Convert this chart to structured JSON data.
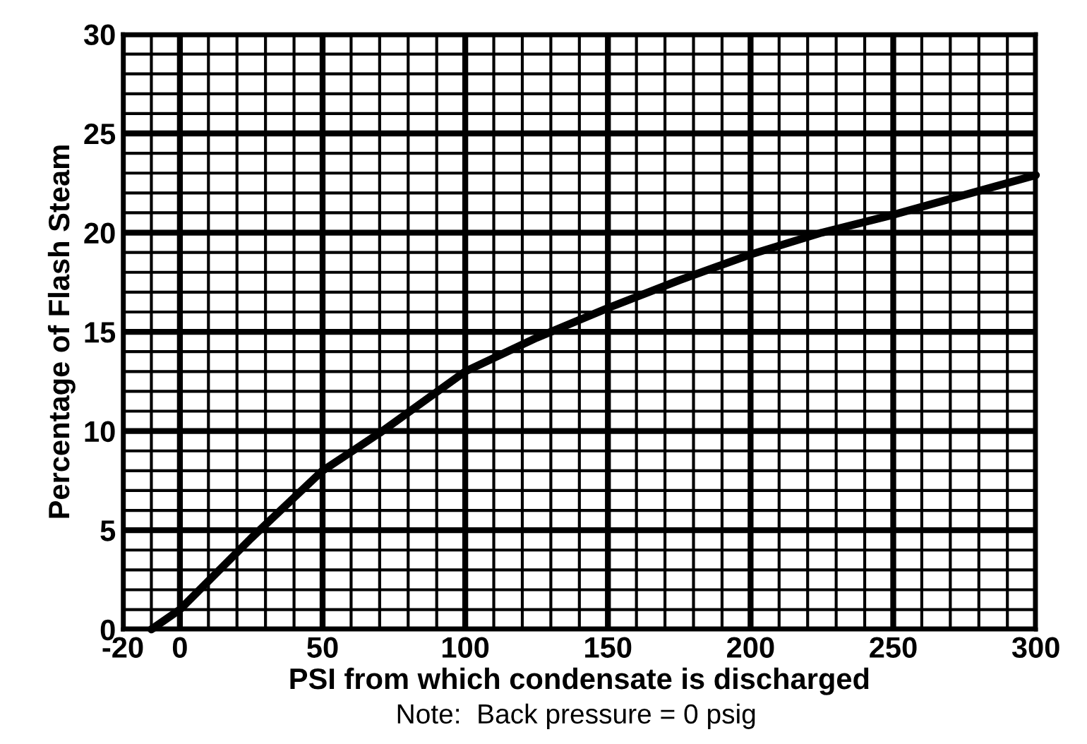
{
  "chart_data": {
    "type": "line",
    "xlabel": "PSI from which condensate is discharged",
    "ylabel": "Percentage of Flash Steam",
    "annotations": [
      "Note:  Back pressure = 0 psig"
    ],
    "x": [
      -10,
      0,
      25,
      50,
      70,
      100,
      125,
      150,
      175,
      200,
      225,
      250,
      275,
      300
    ],
    "series": [
      {
        "color": "#000000",
        "values": [
          0,
          1,
          4.6,
          8,
          9.9,
          13,
          14.7,
          16.2,
          17.6,
          18.9,
          20,
          20.9,
          21.9,
          22.9
        ]
      }
    ],
    "xlim": [
      -20,
      300
    ],
    "ylim": [
      0,
      30
    ],
    "xticks": [
      -20,
      {
        "value": -10,
        "label": null
      },
      0,
      {
        "value": 10,
        "label": null
      },
      {
        "value": 20,
        "label": null
      },
      {
        "value": 30,
        "label": null
      },
      {
        "value": 40,
        "label": null
      },
      50,
      {
        "value": 60,
        "label": null
      },
      {
        "value": 70,
        "label": null
      },
      {
        "value": 80,
        "label": null
      },
      {
        "value": 90,
        "label": null
      },
      100,
      {
        "value": 110,
        "label": null
      },
      {
        "value": 120,
        "label": null
      },
      {
        "value": 130,
        "label": null
      },
      {
        "value": 140,
        "label": null
      },
      150,
      {
        "value": 160,
        "label": null
      },
      {
        "value": 170,
        "label": null
      },
      {
        "value": 180,
        "label": null
      },
      {
        "value": 190,
        "label": null
      },
      200,
      {
        "value": 210,
        "label": null
      },
      {
        "value": 220,
        "label": null
      },
      {
        "value": 230,
        "label": null
      },
      {
        "value": 240,
        "label": null
      },
      250,
      {
        "value": 260,
        "label": null
      },
      {
        "value": 270,
        "label": null
      },
      {
        "value": 280,
        "label": null
      },
      {
        "value": 290,
        "label": null
      },
      300
    ],
    "yticks": [
      0,
      {
        "value": 1,
        "label": null
      },
      {
        "value": 2,
        "label": null
      },
      {
        "value": 3,
        "label": null
      },
      {
        "value": 4,
        "label": null
      },
      5,
      {
        "value": 6,
        "label": null
      },
      {
        "value": 7,
        "label": null
      },
      {
        "value": 8,
        "label": null
      },
      {
        "value": 9,
        "label": null
      },
      10,
      {
        "value": 11,
        "label": null
      },
      {
        "value": 12,
        "label": null
      },
      {
        "value": 13,
        "label": null
      },
      {
        "value": 14,
        "label": null
      },
      15,
      {
        "value": 16,
        "label": null
      },
      {
        "value": 17,
        "label": null
      },
      {
        "value": 18,
        "label": null
      },
      {
        "value": 19,
        "label": null
      },
      20,
      {
        "value": 21,
        "label": null
      },
      {
        "value": 22,
        "label": null
      },
      {
        "value": 23,
        "label": null
      },
      {
        "value": 24,
        "label": null
      },
      25,
      {
        "value": 26,
        "label": null
      },
      {
        "value": 27,
        "label": null
      },
      {
        "value": 28,
        "label": null
      },
      {
        "value": 29,
        "label": null
      },
      30
    ],
    "grid": true,
    "marker": "none",
    "line_style": "solid"
  }
}
